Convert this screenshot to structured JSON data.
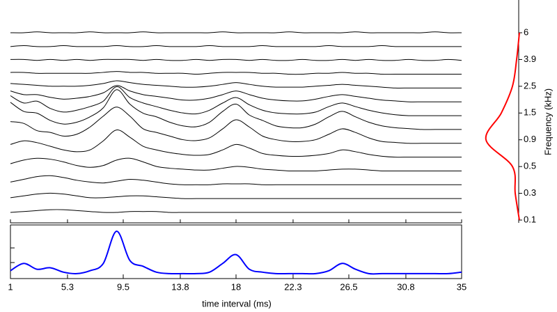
{
  "chart_data": {
    "type": "waterfall",
    "x_label": "time interval (ms)",
    "x": [
      1,
      2,
      3,
      4,
      5,
      6,
      7,
      8,
      9,
      10,
      11,
      12,
      13,
      14,
      15,
      16,
      17,
      18,
      19,
      20,
      21,
      22,
      23,
      24,
      25,
      26,
      27,
      28,
      29,
      30,
      31,
      32,
      33,
      34,
      35
    ],
    "xlim": [
      1,
      35
    ],
    "xticks": [
      1,
      5.3,
      9.5,
      13.8,
      18,
      22.3,
      26.5,
      30.8,
      35
    ],
    "traces": [
      [
        0,
        1,
        2,
        3,
        3,
        2,
        1,
        0,
        0,
        1,
        1,
        1,
        0,
        0,
        0,
        0,
        0,
        0,
        0,
        0,
        0,
        0,
        0,
        0,
        0,
        0,
        0,
        0,
        0,
        0,
        0,
        0,
        0,
        0,
        0
      ],
      [
        1,
        3,
        5,
        6,
        5,
        3,
        1,
        1,
        2,
        3,
        3,
        2,
        1,
        0,
        0,
        0,
        0,
        0,
        0,
        0,
        0,
        0,
        0,
        0,
        0,
        0,
        0,
        0,
        0,
        0,
        0,
        0,
        0,
        0,
        0
      ],
      [
        3,
        6,
        9,
        10,
        8,
        5,
        3,
        2,
        4,
        6,
        5,
        3,
        1,
        0,
        0,
        0,
        1,
        1,
        1,
        0,
        0,
        0,
        0,
        0,
        0,
        0,
        0,
        0,
        0,
        0,
        0,
        0,
        0,
        0,
        0
      ],
      [
        8,
        12,
        14,
        13,
        10,
        6,
        4,
        6,
        12,
        14,
        10,
        5,
        3,
        2,
        1,
        1,
        3,
        5,
        4,
        2,
        1,
        0,
        0,
        0,
        1,
        2,
        2,
        1,
        0,
        0,
        0,
        0,
        0,
        0,
        0
      ],
      [
        14,
        18,
        16,
        12,
        8,
        6,
        8,
        18,
        30,
        22,
        12,
        8,
        5,
        3,
        2,
        3,
        8,
        14,
        10,
        4,
        2,
        1,
        1,
        2,
        4,
        8,
        6,
        3,
        1,
        0,
        0,
        0,
        0,
        0,
        0
      ],
      [
        24,
        22,
        14,
        12,
        8,
        10,
        18,
        30,
        40,
        30,
        16,
        12,
        8,
        4,
        3,
        6,
        16,
        26,
        18,
        8,
        4,
        2,
        2,
        4,
        10,
        16,
        12,
        6,
        2,
        1,
        0,
        0,
        0,
        0,
        0
      ],
      [
        30,
        20,
        18,
        10,
        6,
        8,
        14,
        24,
        44,
        28,
        18,
        14,
        8,
        4,
        3,
        8,
        20,
        28,
        16,
        10,
        4,
        2,
        2,
        6,
        14,
        20,
        14,
        8,
        4,
        2,
        1,
        0,
        0,
        0,
        0
      ],
      [
        22,
        14,
        16,
        8,
        4,
        6,
        10,
        16,
        32,
        20,
        14,
        10,
        6,
        3,
        2,
        6,
        14,
        20,
        12,
        6,
        3,
        2,
        2,
        4,
        10,
        14,
        10,
        6,
        3,
        1,
        0,
        0,
        0,
        0,
        0
      ],
      [
        12,
        8,
        8,
        5,
        3,
        4,
        6,
        10,
        18,
        12,
        8,
        6,
        4,
        2,
        2,
        4,
        8,
        12,
        8,
        4,
        2,
        1,
        1,
        3,
        6,
        8,
        6,
        4,
        2,
        1,
        0,
        0,
        0,
        0,
        0
      ],
      [
        5,
        4,
        3,
        2,
        2,
        2,
        3,
        5,
        8,
        6,
        4,
        3,
        2,
        1,
        1,
        2,
        4,
        6,
        4,
        2,
        1,
        1,
        1,
        2,
        3,
        4,
        3,
        2,
        1,
        0,
        0,
        0,
        0,
        0,
        0
      ],
      [
        2,
        2,
        1,
        1,
        1,
        1,
        1,
        2,
        3,
        2,
        2,
        1,
        1,
        1,
        0,
        1,
        2,
        2,
        2,
        1,
        1,
        0,
        0,
        1,
        1,
        2,
        1,
        1,
        0,
        0,
        0,
        0,
        0,
        0,
        0
      ],
      [
        1,
        1,
        0,
        1,
        0,
        1,
        0,
        1,
        1,
        1,
        0,
        1,
        0,
        0,
        1,
        0,
        1,
        1,
        0,
        1,
        0,
        0,
        1,
        0,
        0,
        1,
        0,
        1,
        0,
        0,
        1,
        0,
        0,
        1,
        0
      ],
      [
        0,
        1,
        0,
        0,
        1,
        0,
        0,
        0,
        1,
        0,
        0,
        1,
        0,
        0,
        0,
        1,
        0,
        0,
        0,
        1,
        0,
        0,
        0,
        0,
        1,
        0,
        0,
        0,
        1,
        0,
        0,
        0,
        0,
        0,
        0
      ],
      [
        0,
        0,
        1,
        0,
        0,
        0,
        1,
        0,
        0,
        0,
        1,
        0,
        0,
        0,
        0,
        0,
        1,
        0,
        0,
        0,
        0,
        1,
        0,
        0,
        0,
        0,
        1,
        0,
        0,
        0,
        0,
        0,
        1,
        0,
        0
      ]
    ],
    "trace_color": "#000000",
    "summary": {
      "color": "#0000ff",
      "values": [
        3,
        8,
        4,
        5,
        2,
        1,
        3,
        8,
        30,
        10,
        6,
        2,
        1,
        1,
        1,
        2,
        8,
        14,
        4,
        2,
        1,
        1,
        1,
        1,
        3,
        8,
        4,
        1,
        1,
        1,
        1,
        1,
        1,
        1,
        2
      ]
    },
    "profile": {
      "color": "#ff0000",
      "y_label": "Frequency (kHz)",
      "categories": [
        "0.1",
        "0.3",
        "0.5",
        "0.9",
        "1.5",
        "2.5",
        "3.9",
        "6"
      ],
      "values": [
        2,
        8,
        12,
        50,
        28,
        12,
        6,
        2
      ]
    }
  }
}
